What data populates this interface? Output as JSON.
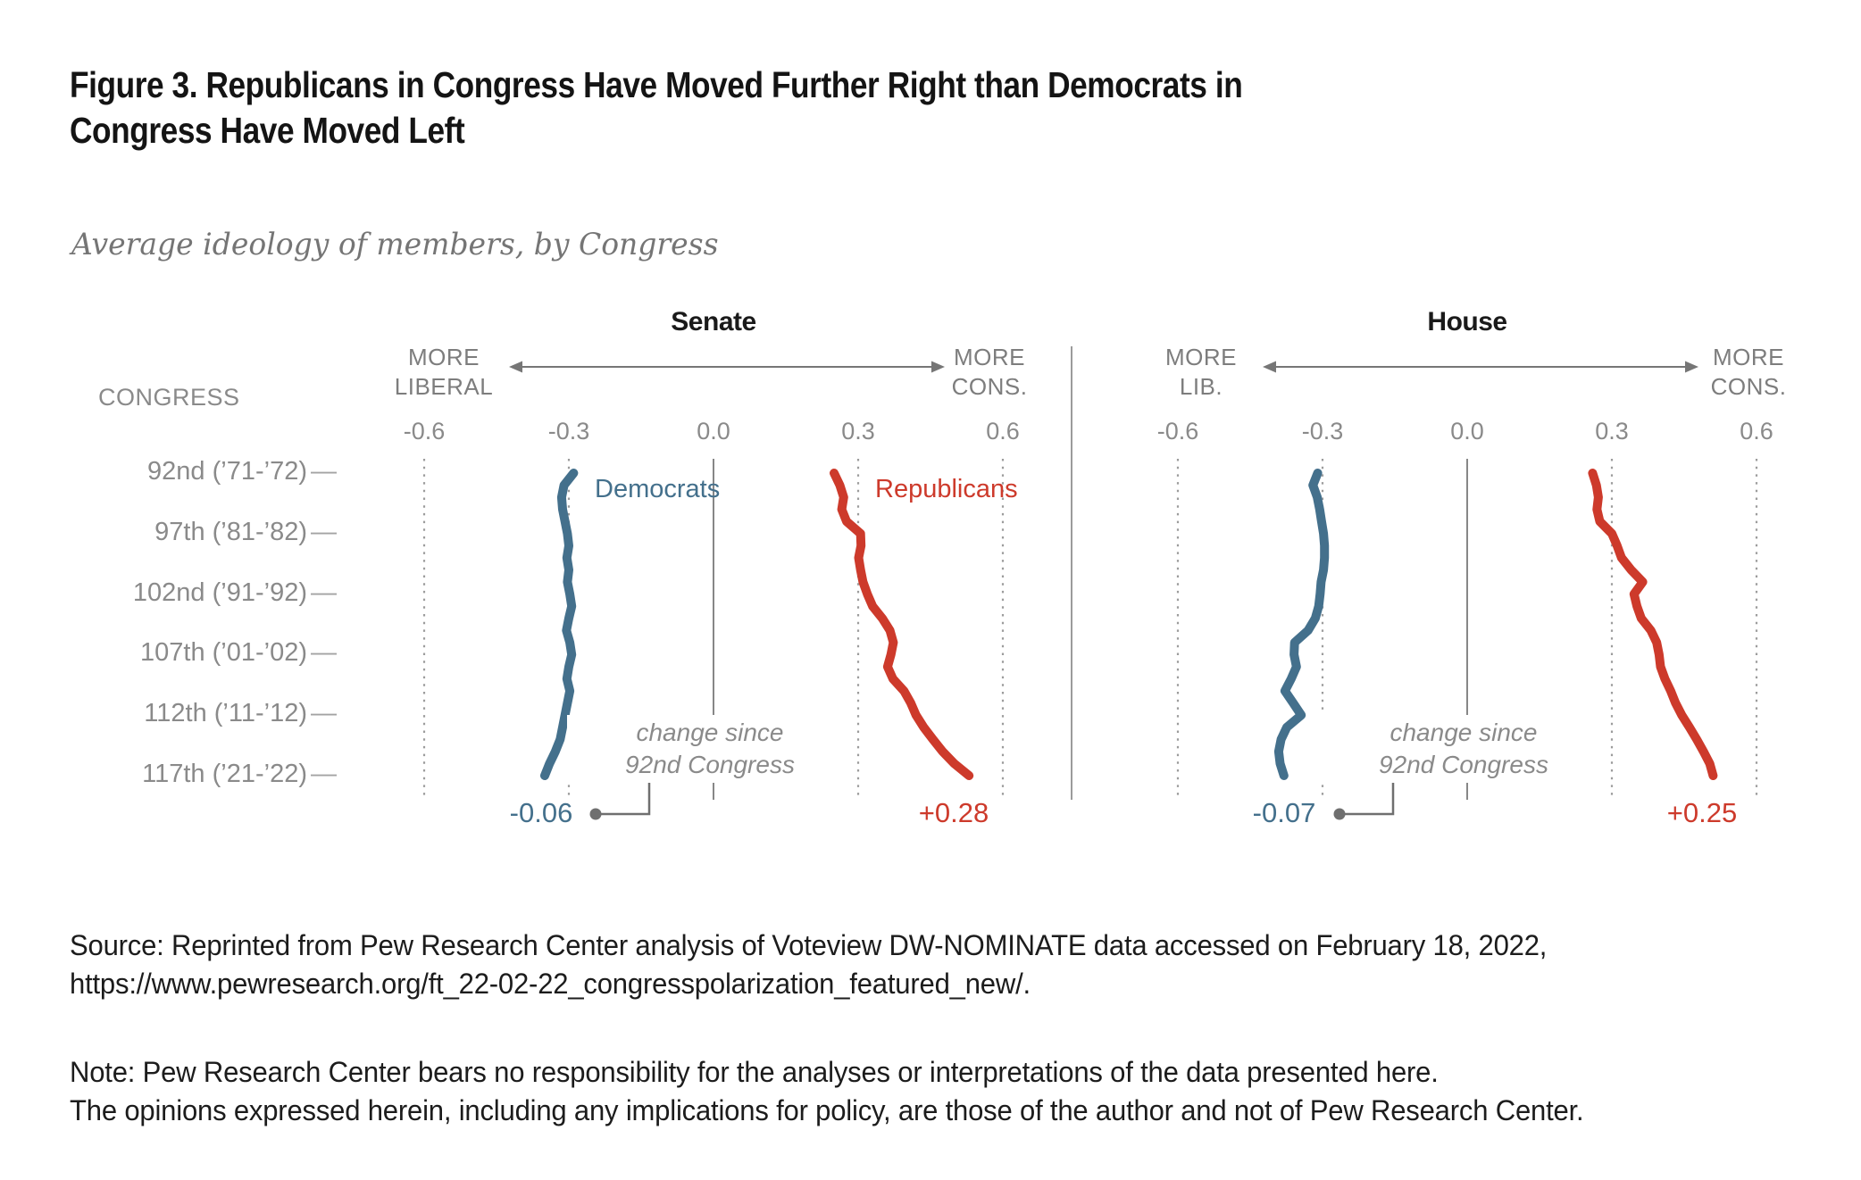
{
  "title": {
    "line1": "Figure 3. Republicans in Congress Have Moved Further Right than Democrats in",
    "line2": "Congress Have Moved Left"
  },
  "subtitle": "Average ideology of members, by Congress",
  "colors": {
    "democrat": "#44708c",
    "republican": "#cd3a2b",
    "grid_gray": "#9c9c9c",
    "label_gray": "#8a8a8a",
    "text_dark": "#1c1c1c"
  },
  "congress_axis": {
    "header": "CONGRESS",
    "tick_dash": "—",
    "rows": [
      "92nd (’71-’72)",
      "97th (’81-’82)",
      "102nd (’91-’92)",
      "107th (’01-’02)",
      "112th (’11-’12)",
      "117th (’21-’22)"
    ]
  },
  "annotations": {
    "change_line1": "change since",
    "change_line2": "92nd Congress"
  },
  "chart_data": [
    {
      "panel": "Senate",
      "type": "line",
      "x_axis": {
        "tick_labels": [
          "-0.6",
          "-0.3",
          "0.0",
          "0.3",
          "0.6"
        ],
        "tick_values": [
          -0.6,
          -0.3,
          0,
          0.3,
          0.6
        ],
        "left_label": "MORE LIBERAL",
        "right_label": "MORE CONS."
      },
      "congresses": [
        92,
        93,
        94,
        95,
        96,
        97,
        98,
        99,
        100,
        101,
        102,
        103,
        104,
        105,
        106,
        107,
        108,
        109,
        110,
        111,
        112,
        113,
        114,
        115,
        116,
        117
      ],
      "series": [
        {
          "name": "Democrats",
          "color": "#44708c",
          "values": [
            -0.29,
            -0.31,
            -0.315,
            -0.313,
            -0.308,
            -0.303,
            -0.3,
            -0.304,
            -0.3,
            -0.303,
            -0.298,
            -0.294,
            -0.3,
            -0.305,
            -0.298,
            -0.294,
            -0.3,
            -0.304,
            -0.298,
            -0.303,
            -0.308,
            -0.313,
            -0.318,
            -0.328,
            -0.34,
            -0.35
          ]
        },
        {
          "name": "Republicans",
          "color": "#cd3a2b",
          "values": [
            0.25,
            0.262,
            0.27,
            0.266,
            0.276,
            0.305,
            0.306,
            0.301,
            0.305,
            0.31,
            0.319,
            0.33,
            0.35,
            0.366,
            0.373,
            0.368,
            0.361,
            0.372,
            0.395,
            0.409,
            0.42,
            0.436,
            0.455,
            0.475,
            0.499,
            0.53
          ]
        }
      ],
      "change_since_92nd": {
        "Democrats": "-0.06",
        "Republicans": "+0.28"
      }
    },
    {
      "panel": "House",
      "type": "line",
      "x_axis": {
        "tick_labels": [
          "-0.6",
          "-0.3",
          "0.0",
          "0.3",
          "0.6"
        ],
        "tick_values": [
          -0.6,
          -0.3,
          0,
          0.3,
          0.6
        ],
        "left_label": "MORE LIB.",
        "right_label": "MORE CONS."
      },
      "congresses": [
        92,
        93,
        94,
        95,
        96,
        97,
        98,
        99,
        100,
        101,
        102,
        103,
        104,
        105,
        106,
        107,
        108,
        109,
        110,
        111,
        112,
        113,
        114,
        115,
        116,
        117
      ],
      "series": [
        {
          "name": "Democrats",
          "color": "#44708c",
          "values": [
            -0.31,
            -0.32,
            -0.311,
            -0.306,
            -0.302,
            -0.298,
            -0.296,
            -0.296,
            -0.298,
            -0.303,
            -0.305,
            -0.308,
            -0.315,
            -0.33,
            -0.358,
            -0.359,
            -0.354,
            -0.365,
            -0.378,
            -0.361,
            -0.344,
            -0.374,
            -0.386,
            -0.391,
            -0.388,
            -0.38
          ]
        },
        {
          "name": "Republicans",
          "color": "#cd3a2b",
          "values": [
            0.26,
            0.268,
            0.272,
            0.269,
            0.275,
            0.3,
            0.311,
            0.32,
            0.34,
            0.364,
            0.346,
            0.352,
            0.361,
            0.381,
            0.393,
            0.398,
            0.401,
            0.41,
            0.422,
            0.432,
            0.445,
            0.461,
            0.476,
            0.49,
            0.503,
            0.51
          ]
        }
      ],
      "change_since_92nd": {
        "Democrats": "-0.07",
        "Republicans": "+0.25"
      }
    }
  ],
  "source": {
    "lines": [
      "Source: Reprinted from Pew Research Center analysis of Voteview DW-NOMINATE data accessed on February 18, 2022,",
      "https://www.pewresearch.org/ft_22-02-22_congresspolarization_featured_new/."
    ]
  },
  "note": {
    "lines": [
      "Note: Pew Research Center bears no responsibility for the analyses or interpretations of the data presented here.",
      "The opinions expressed herein, including any implications for policy, are those of the author and not of Pew Research Center."
    ]
  }
}
